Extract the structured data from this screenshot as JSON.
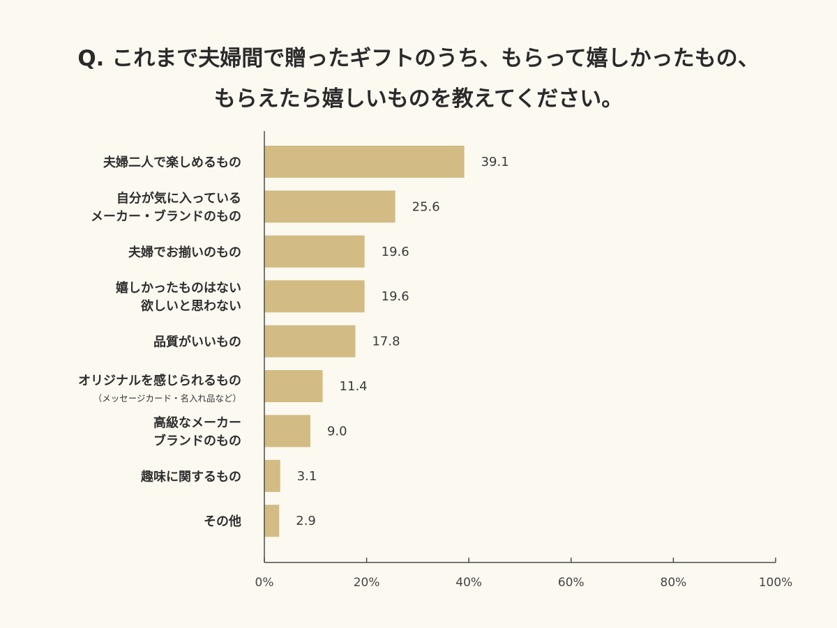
{
  "title": {
    "line1": "Q. これまで夫婦間で贈ったギフトのうち、もらって嬉しかったもの、",
    "line2": "もらえたら嬉しいものを教えてください。"
  },
  "colors": {
    "bar": "#d2bc84",
    "axis": "#4a4a4a",
    "background": "#fcf9f1"
  },
  "chart_data": {
    "type": "bar",
    "orientation": "horizontal",
    "categories": [
      [
        "夫婦二人で楽しめるもの"
      ],
      [
        "自分が気に入っている",
        "メーカー・ブランドのもの"
      ],
      [
        "夫婦でお揃いのもの"
      ],
      [
        "嬉しかったものはない",
        "欲しいと思わない"
      ],
      [
        "品質がいいもの"
      ],
      [
        "オリジナルを感じられるもの",
        "（メッセージカード・名入れ品など）"
      ],
      [
        "高級なメーカー",
        "ブランドのもの"
      ],
      [
        "趣味に関するもの"
      ],
      [
        "その他"
      ]
    ],
    "values": [
      39.1,
      25.6,
      19.6,
      19.6,
      17.8,
      11.4,
      9.0,
      3.1,
      2.9
    ],
    "value_labels": [
      "39.1",
      "25.6",
      "19.6",
      "19.6",
      "17.8",
      "11.4",
      "9.0",
      "3.1",
      "2.9"
    ],
    "xlim": [
      0,
      100
    ],
    "x_ticks": [
      "0%",
      "20%",
      "40%",
      "60%",
      "80%",
      "100%"
    ],
    "grid": false
  }
}
